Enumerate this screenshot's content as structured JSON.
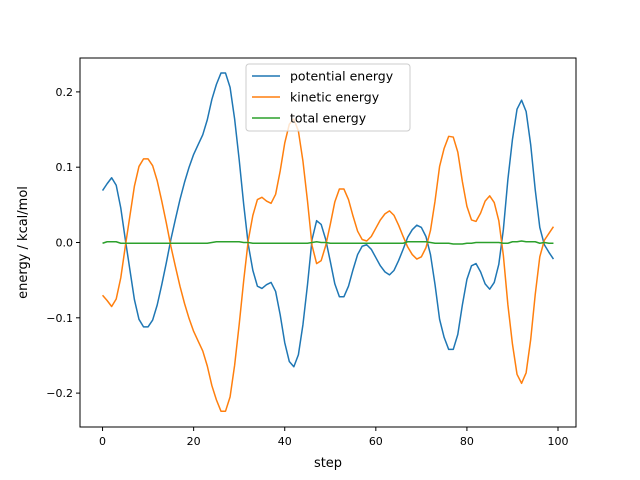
{
  "chart_data": {
    "type": "line",
    "title": "",
    "xlabel": "step",
    "ylabel": "energy / kcal/mol",
    "xlim": [
      -4.95,
      103.95
    ],
    "ylim": [
      -0.245,
      0.245
    ],
    "xticks": [
      0,
      20,
      40,
      60,
      80,
      100
    ],
    "xtick_labels": [
      "0",
      "20",
      "40",
      "60",
      "80",
      "100"
    ],
    "yticks": [
      -0.2,
      -0.1,
      0.0,
      0.1,
      0.2
    ],
    "ytick_labels": [
      "−0.2",
      "−0.1",
      "0.0",
      "0.1",
      "0.2"
    ],
    "grid": false,
    "legend_position": "upper-center",
    "series": [
      {
        "name": "potential energy",
        "color": "#1f77b4",
        "values": [
          0.069,
          0.078,
          0.086,
          0.076,
          0.046,
          0.004,
          -0.036,
          -0.076,
          -0.102,
          -0.112,
          -0.112,
          -0.103,
          -0.083,
          -0.056,
          -0.027,
          0.004,
          0.031,
          0.057,
          0.08,
          0.1,
          0.117,
          0.13,
          0.143,
          0.163,
          0.19,
          0.21,
          0.225,
          0.225,
          0.206,
          0.164,
          0.11,
          0.05,
          -0.003,
          -0.037,
          -0.058,
          -0.061,
          -0.056,
          -0.053,
          -0.065,
          -0.096,
          -0.133,
          -0.158,
          -0.165,
          -0.149,
          -0.109,
          -0.056,
          0.004,
          0.029,
          0.024,
          0.004,
          -0.025,
          -0.055,
          -0.072,
          -0.072,
          -0.058,
          -0.036,
          -0.016,
          -0.005,
          -0.003,
          -0.009,
          -0.02,
          -0.031,
          -0.039,
          -0.043,
          -0.037,
          -0.024,
          -0.009,
          0.007,
          0.017,
          0.023,
          0.02,
          0.008,
          -0.016,
          -0.056,
          -0.102,
          -0.126,
          -0.142,
          -0.142,
          -0.122,
          -0.083,
          -0.049,
          -0.031,
          -0.028,
          -0.039,
          -0.055,
          -0.062,
          -0.053,
          -0.029,
          0.017,
          0.084,
          0.137,
          0.177,
          0.189,
          0.174,
          0.13,
          0.07,
          0.02,
          -0.003,
          -0.013,
          -0.022
        ]
      },
      {
        "name": "kinetic energy",
        "color": "#ff7f0e",
        "values": [
          -0.07,
          -0.077,
          -0.085,
          -0.075,
          -0.047,
          -0.005,
          0.035,
          0.075,
          0.101,
          0.111,
          0.111,
          0.102,
          0.082,
          0.055,
          0.026,
          -0.005,
          -0.032,
          -0.058,
          -0.081,
          -0.101,
          -0.118,
          -0.131,
          -0.144,
          -0.164,
          -0.19,
          -0.209,
          -0.224,
          -0.224,
          -0.205,
          -0.163,
          -0.109,
          -0.05,
          0.003,
          0.036,
          0.057,
          0.06,
          0.055,
          0.052,
          0.064,
          0.095,
          0.132,
          0.157,
          0.164,
          0.148,
          0.108,
          0.055,
          -0.004,
          -0.028,
          -0.024,
          -0.004,
          0.024,
          0.054,
          0.071,
          0.071,
          0.057,
          0.035,
          0.015,
          0.004,
          0.002,
          0.008,
          0.019,
          0.03,
          0.038,
          0.042,
          0.036,
          0.023,
          0.008,
          -0.006,
          -0.016,
          -0.022,
          -0.019,
          -0.007,
          0.016,
          0.055,
          0.101,
          0.125,
          0.141,
          0.14,
          0.12,
          0.081,
          0.048,
          0.03,
          0.028,
          0.039,
          0.055,
          0.062,
          0.053,
          0.029,
          -0.017,
          -0.083,
          -0.135,
          -0.175,
          -0.187,
          -0.173,
          -0.129,
          -0.069,
          -0.019,
          0.003,
          0.012,
          0.021
        ]
      },
      {
        "name": "total energy",
        "color": "#2ca02c",
        "values": [
          -0.001,
          0.001,
          0.001,
          0.001,
          -0.001,
          -0.001,
          -0.001,
          -0.001,
          -0.001,
          -0.001,
          -0.001,
          -0.001,
          -0.001,
          -0.001,
          -0.001,
          -0.001,
          -0.001,
          -0.001,
          -0.001,
          -0.001,
          -0.001,
          -0.001,
          -0.001,
          -0.001,
          0.0,
          0.001,
          0.001,
          0.001,
          0.001,
          0.001,
          0.001,
          0.0,
          0.0,
          -0.001,
          -0.001,
          -0.001,
          -0.001,
          -0.001,
          -0.001,
          -0.001,
          -0.001,
          -0.001,
          -0.001,
          -0.001,
          -0.001,
          -0.001,
          0.0,
          0.001,
          0.0,
          0.0,
          -0.001,
          -0.001,
          -0.001,
          -0.001,
          -0.001,
          -0.001,
          -0.001,
          -0.001,
          -0.001,
          -0.001,
          -0.001,
          -0.001,
          -0.001,
          -0.001,
          -0.001,
          -0.001,
          -0.001,
          0.001,
          0.001,
          0.001,
          0.001,
          0.001,
          0.0,
          -0.001,
          -0.001,
          -0.001,
          -0.001,
          -0.002,
          -0.002,
          -0.002,
          -0.001,
          -0.001,
          0.0,
          0.0,
          0.0,
          0.0,
          0.0,
          0.0,
          -0.001,
          -0.001,
          0.001,
          0.001,
          0.002,
          0.001,
          0.001,
          0.001,
          -0.001,
          0.0,
          -0.001,
          -0.001
        ]
      }
    ]
  }
}
